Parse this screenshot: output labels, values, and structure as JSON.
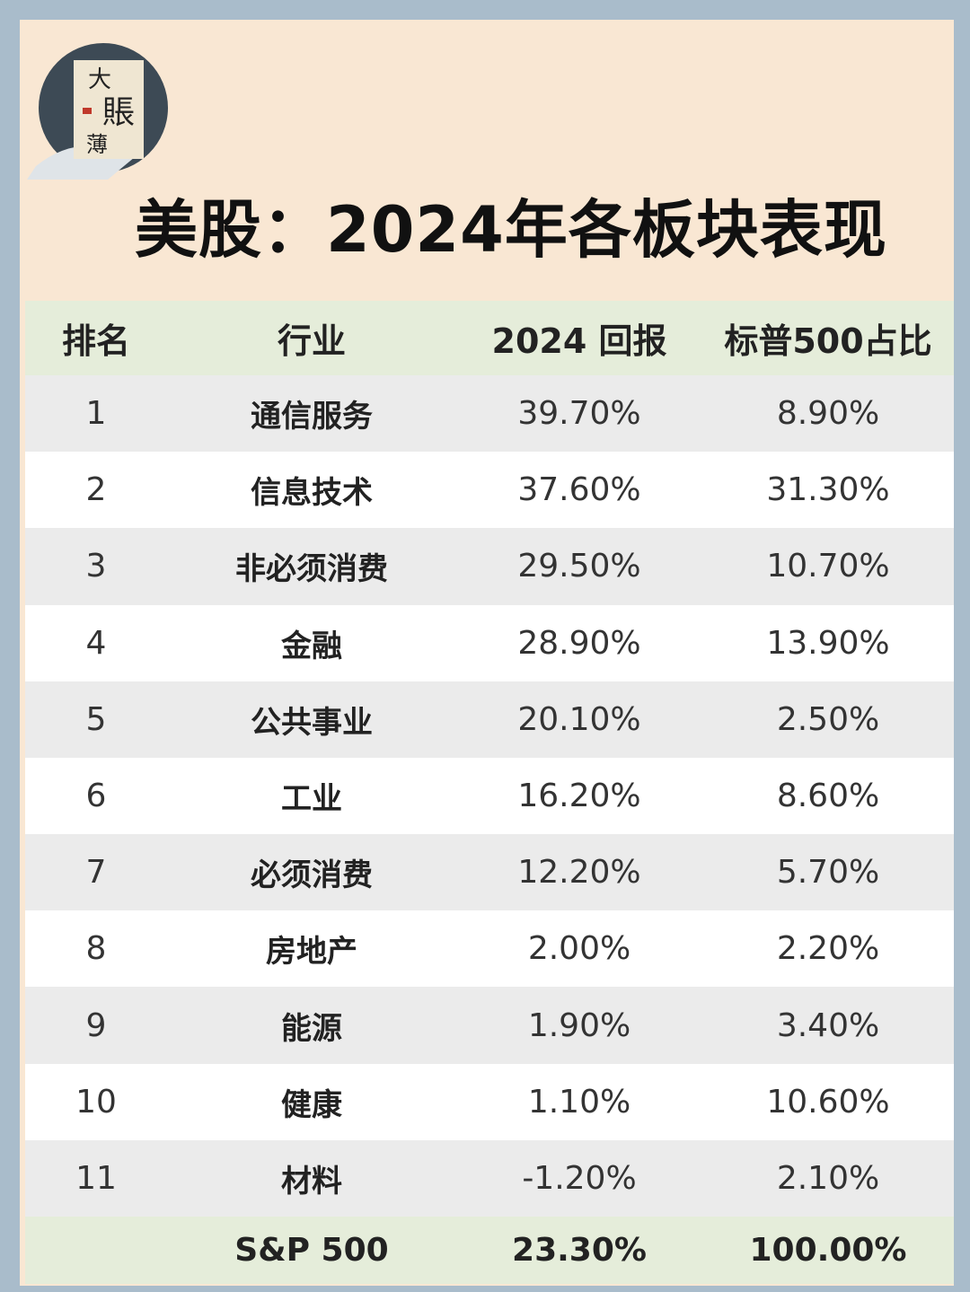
{
  "logo": [
    "大",
    "賬",
    "薄"
  ],
  "header": {
    "title": "美股：2024年各板块表现"
  },
  "table": {
    "columns": [
      "排名",
      "行业",
      "2024 回报",
      "标普500占比"
    ],
    "rows": [
      [
        "1",
        "通信服务",
        "39.70%",
        "8.90%"
      ],
      [
        "2",
        "信息技术",
        "37.60%",
        "31.30%"
      ],
      [
        "3",
        "非必须消费",
        "29.50%",
        "10.70%"
      ],
      [
        "4",
        "金融",
        "28.90%",
        "13.90%"
      ],
      [
        "5",
        "公共事业",
        "20.10%",
        "2.50%"
      ],
      [
        "6",
        "工业",
        "16.20%",
        "8.60%"
      ],
      [
        "7",
        "必须消费",
        "12.20%",
        "5.70%"
      ],
      [
        "8",
        "房地产",
        "2.00%",
        "2.20%"
      ],
      [
        "9",
        "能源",
        "1.90%",
        "3.40%"
      ],
      [
        "10",
        "健康",
        "1.10%",
        "10.60%"
      ],
      [
        "11",
        "材料",
        "-1.20%",
        "2.10%"
      ]
    ],
    "total": {
      "label": "S&P 500",
      "return": "23.30%",
      "weight": "100.00%"
    }
  }
}
